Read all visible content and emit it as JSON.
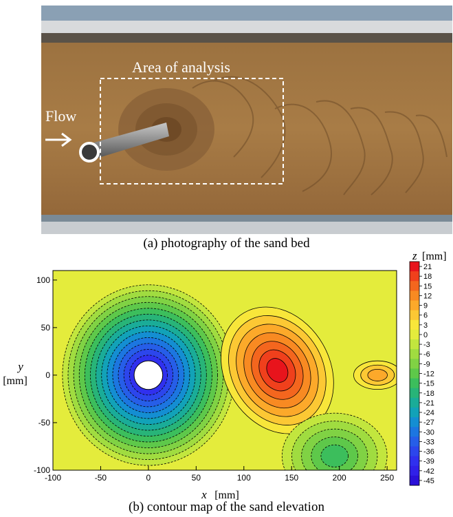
{
  "figure_a": {
    "caption": "(a) photography of the sand bed",
    "area_label": "Area of analysis",
    "flow_label": "Flow"
  },
  "figure_b": {
    "caption": "(b) contour map of the sand elevation"
  },
  "chart_data": {
    "type": "heatmap",
    "title": "",
    "xlabel_var": "x",
    "xlabel_unit": "[mm]",
    "ylabel_var": "y",
    "ylabel_unit": "[mm]",
    "xlim": [
      -100,
      260
    ],
    "ylim": [
      -100,
      110
    ],
    "xticks": [
      -100,
      -50,
      0,
      50,
      100,
      150,
      200,
      250
    ],
    "yticks": [
      -100,
      -50,
      0,
      50,
      100
    ],
    "colorbar": {
      "label_var": "z",
      "label_unit": "[mm]",
      "levels": [
        21,
        18,
        15,
        12,
        9,
        6,
        3,
        0,
        -3,
        -6,
        -9,
        -12,
        -15,
        -18,
        -21,
        -24,
        -27,
        -30,
        -33,
        -36,
        -39,
        -42,
        -45
      ],
      "colors": [
        "#e8141c",
        "#f0401c",
        "#f4661e",
        "#f88a22",
        "#fca92a",
        "#fcc834",
        "#f8e63a",
        "#e4ec3c",
        "#c2e63e",
        "#a0dc40",
        "#80d244",
        "#5ec84a",
        "#3cbe5c",
        "#28b478",
        "#1aac98",
        "#12a2b8",
        "#148ed2",
        "#1c76e0",
        "#265ee8",
        "#2c46ec",
        "#3030ee",
        "#3020e8",
        "#2a10d8"
      ]
    },
    "features": [
      {
        "kind": "scour-hole",
        "x": 0,
        "y": 0,
        "z_min": -45
      },
      {
        "kind": "dune",
        "x": 135,
        "y": 5,
        "z_max": 21
      },
      {
        "kind": "trough",
        "x": 195,
        "y": -85,
        "z_min": -15
      },
      {
        "kind": "ridge",
        "x": 240,
        "y": 0,
        "z_max": 9
      },
      {
        "kind": "pier",
        "x": 0,
        "y": 0,
        "diameter": 30
      }
    ]
  }
}
